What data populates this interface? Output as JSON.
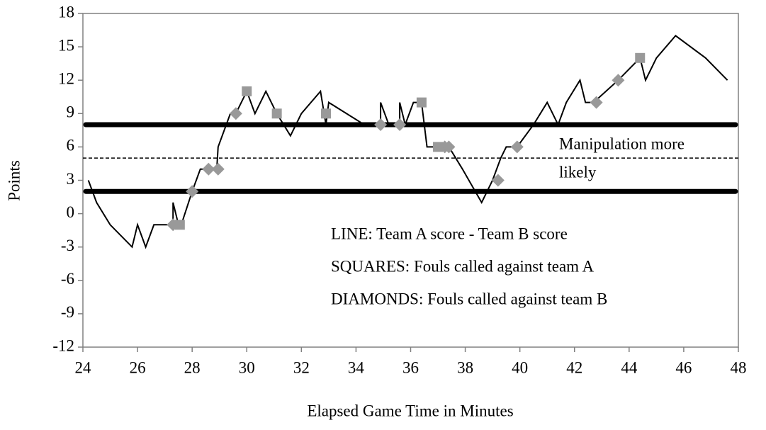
{
  "chart_data": {
    "type": "line",
    "x_label": "Elapsed Game Time in Minutes",
    "y_label": "Points",
    "xlim": [
      24,
      48
    ],
    "xticks": [
      24,
      26,
      28,
      30,
      32,
      34,
      36,
      38,
      40,
      42,
      44,
      46,
      48
    ],
    "ylim": [
      -12,
      18
    ],
    "yticks": [
      -12,
      -9,
      -6,
      -3,
      0,
      3,
      6,
      9,
      12,
      15,
      18
    ],
    "color": "#000000",
    "x": [
      24.2,
      24.5,
      25.0,
      25.8,
      26.0,
      26.3,
      26.6,
      27.3,
      27.3,
      27.5,
      27.6,
      28.0,
      28.3,
      28.6,
      28.9,
      28.95,
      29.4,
      29.6,
      30.0,
      30.3,
      30.7,
      31.1,
      31.6,
      32.0,
      32.7,
      32.9,
      33.0,
      34.3,
      34.9,
      34.9,
      35.2,
      35.6,
      35.6,
      35.8,
      36.1,
      36.4,
      36.6,
      37.2,
      37.4,
      37.9,
      38.6,
      39.0,
      39.3,
      39.5,
      39.9,
      40.5,
      41.0,
      41.4,
      41.7,
      42.2,
      42.4,
      42.7,
      43.6,
      44.4,
      44.6,
      45.0,
      45.7,
      46.8,
      47.6
    ],
    "values": [
      3,
      1,
      -1,
      -3,
      -1,
      -3,
      -1,
      -1,
      1,
      -1,
      -1,
      2,
      4,
      4,
      4,
      6,
      9,
      9,
      11,
      9,
      11,
      9,
      7,
      9,
      11,
      8,
      10,
      8,
      8,
      10,
      8,
      8,
      10,
      8,
      10,
      10,
      6,
      6,
      6,
      4,
      1,
      3,
      5,
      6,
      6,
      8,
      10,
      8,
      10,
      12,
      10,
      10,
      12,
      14,
      12,
      14,
      16,
      14,
      12
    ],
    "squares": {
      "color": "#999999",
      "x": [
        27.55,
        30.0,
        31.1,
        32.9,
        36.4,
        37.0,
        44.4
      ],
      "values": [
        -1,
        11,
        9,
        9,
        10,
        6,
        14
      ]
    },
    "diamonds": {
      "color": "#999999",
      "x": [
        27.3,
        28.0,
        28.6,
        28.95,
        29.6,
        34.9,
        35.6,
        37.25,
        37.4,
        39.2,
        39.9,
        42.8,
        43.6
      ],
      "values": [
        -1,
        2,
        4,
        4,
        9,
        8,
        8,
        6,
        6,
        3,
        6,
        10,
        12
      ]
    },
    "reference_lines": [
      {
        "value": 8,
        "style": "thick"
      },
      {
        "value": 2,
        "style": "thick"
      },
      {
        "value": 5,
        "style": "dashed"
      }
    ],
    "zone_annotation": [
      "Manipulation more",
      "likely"
    ],
    "annotations": [
      "LINE: Team A score - Team B score",
      "SQUARES: Fouls called against team A",
      "DIAMONDS: Fouls called against team B"
    ]
  }
}
